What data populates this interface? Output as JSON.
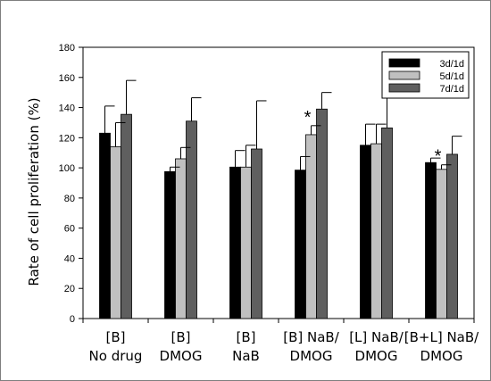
{
  "chart_data": {
    "type": "bar",
    "categories": [
      [
        "[B]",
        "No drug"
      ],
      [
        "[B]",
        "DMOG"
      ],
      [
        "[B]",
        "NaB"
      ],
      [
        "[B] NaB/",
        "DMOG"
      ],
      [
        "[L] NaB/",
        "DMOG"
      ],
      [
        "[B+L] NaB/",
        "DMOG"
      ]
    ],
    "series": [
      {
        "name": "3d/1d",
        "color": "#000000",
        "values": [
          123,
          97.5,
          100.5,
          98.5,
          115,
          103.5
        ],
        "errors": [
          18,
          3,
          11,
          9,
          14,
          3
        ]
      },
      {
        "name": "5d/1d",
        "color": "#c0c0c0",
        "values": [
          114,
          106,
          100.5,
          122,
          116,
          99
        ],
        "errors": [
          16,
          7.5,
          14.5,
          6,
          13,
          3
        ]
      },
      {
        "name": "7d/1d",
        "color": "#5f5f5f",
        "values": [
          135.5,
          131,
          112.5,
          139,
          126.5,
          109
        ],
        "errors": [
          22.5,
          15.5,
          32,
          11,
          24.5,
          12
        ]
      }
    ],
    "ylabel": "Rate of cell proliferation (%)",
    "xlabel": "",
    "ylim": [
      0,
      180
    ],
    "yticks": [
      0,
      20,
      40,
      60,
      80,
      100,
      120,
      140,
      160,
      180
    ],
    "grid": false,
    "legend_position": "top-right",
    "annotations": [
      {
        "text": "*",
        "category_index": 3,
        "series_index": 1
      },
      {
        "text": "*",
        "category_index": 5,
        "series_index": 1
      }
    ]
  }
}
